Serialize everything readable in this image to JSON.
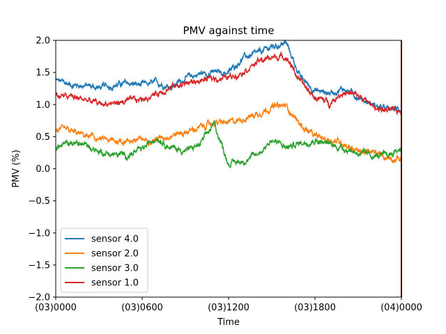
{
  "chart_data": {
    "type": "line",
    "title": "PMV against  time",
    "xlabel": "Time",
    "ylabel": "PMV (%)",
    "x_ticks": [
      "(03)0000",
      "(03)0600",
      "(03)1200",
      "(03)1800",
      "(04)0000"
    ],
    "x_tick_hours": [
      0,
      6,
      12,
      18,
      24
    ],
    "xlim_hours": [
      0,
      24
    ],
    "ylim": [
      -2.0,
      2.0
    ],
    "y_ticks": [
      -2.0,
      -1.5,
      -1.0,
      -0.5,
      0.0,
      0.5,
      1.0,
      1.5,
      2.0
    ],
    "grid": false,
    "legend": {
      "placement": "lower-left"
    },
    "x_hours": [
      0,
      1,
      2,
      3,
      4,
      5,
      6,
      7,
      8,
      9,
      10,
      11,
      12,
      13,
      14,
      15,
      16,
      17,
      18,
      19,
      20,
      21,
      22,
      23,
      24
    ],
    "series": [
      {
        "name": "sensor 4.0",
        "color": "#1f77b4",
        "values": [
          1.38,
          1.31,
          1.3,
          1.26,
          1.3,
          1.33,
          1.3,
          1.34,
          1.28,
          1.41,
          1.48,
          1.5,
          1.5,
          1.73,
          1.79,
          1.9,
          1.96,
          1.42,
          1.22,
          1.18,
          1.25,
          1.12,
          1.0,
          0.92,
          0.93
        ]
      },
      {
        "name": "sensor 2.0",
        "color": "#ff7f0e",
        "values": [
          0.6,
          0.58,
          0.52,
          0.46,
          0.43,
          0.44,
          0.45,
          0.46,
          0.53,
          0.57,
          0.64,
          0.72,
          0.71,
          0.78,
          0.86,
          0.96,
          0.98,
          0.68,
          0.5,
          0.46,
          0.4,
          0.27,
          0.25,
          0.18,
          0.15
        ]
      },
      {
        "name": "sensor 3.0",
        "color": "#2ca02c",
        "values": [
          0.33,
          0.4,
          0.38,
          0.27,
          0.22,
          0.21,
          0.3,
          0.5,
          0.33,
          0.28,
          0.37,
          0.7,
          0.08,
          0.12,
          0.22,
          0.45,
          0.33,
          0.4,
          0.45,
          0.38,
          0.32,
          0.25,
          0.2,
          0.2,
          0.32
        ]
      },
      {
        "name": "sensor 1.0",
        "color": "#d62728",
        "values": [
          1.14,
          1.12,
          1.08,
          1.01,
          1.02,
          1.05,
          1.08,
          1.17,
          1.27,
          1.33,
          1.37,
          1.41,
          1.42,
          1.52,
          1.66,
          1.74,
          1.75,
          1.35,
          1.11,
          1.03,
          1.2,
          1.13,
          0.98,
          0.9,
          0.9
        ]
      }
    ]
  }
}
